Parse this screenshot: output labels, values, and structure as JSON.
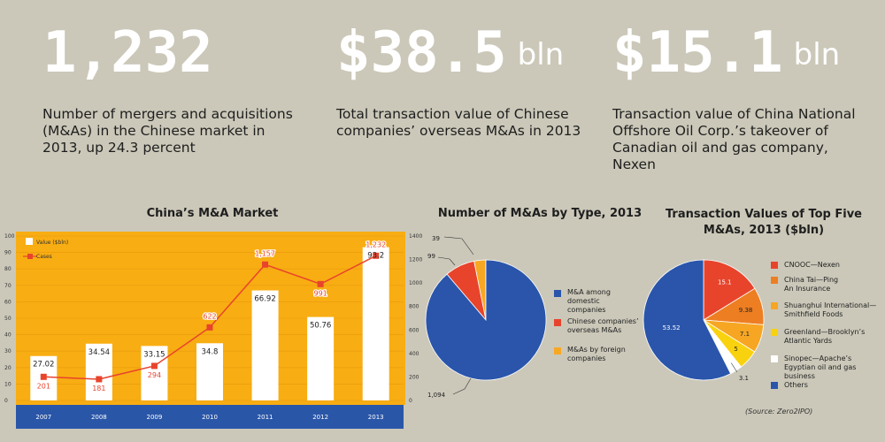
{
  "stats": [
    {
      "value": "1,232",
      "unit": "",
      "desc": "Number of mergers and acquisitions (M&As) in the Chinese market in 2013, up 24.3 percent"
    },
    {
      "value": "$38.5",
      "unit": "bln",
      "desc": "Total transaction value of Chinese companies’ overseas M&As in 2013"
    },
    {
      "value": "$15.1",
      "unit": "bln",
      "desc": "Transaction value of China National Offshore Oil Corp.’s takeover of Canadian oil and gas company, Nexen"
    }
  ],
  "chart_data": [
    {
      "type": "bar",
      "title": "China’s M&A Market",
      "categories": [
        "2007",
        "2008",
        "2009",
        "2010",
        "2011",
        "2012",
        "2013"
      ],
      "series": [
        {
          "name": "Value ($bln)",
          "type": "bar",
          "axis": "left",
          "values": [
            27.02,
            34.54,
            33.15,
            34.8,
            66.92,
            50.76,
            93.2
          ],
          "labels": [
            "27.02",
            "34.54",
            "33.15",
            "34.8",
            "66.92",
            "50.76",
            "93.2"
          ]
        },
        {
          "name": "Cases",
          "type": "line",
          "axis": "right",
          "values": [
            201,
            181,
            294,
            622,
            1157,
            991,
            1232
          ],
          "labels": [
            "201",
            "181",
            "294",
            "622",
            "1,157",
            "991",
            "1,232"
          ]
        }
      ],
      "yleft": {
        "range": [
          0,
          100
        ],
        "ticks": [
          "100",
          "90",
          "80",
          "70",
          "60",
          "50",
          "40",
          "30",
          "20",
          "10",
          "0"
        ]
      },
      "yright": {
        "range": [
          0,
          1400
        ],
        "ticks": [
          "1400",
          "1200",
          "1000",
          "800",
          "600",
          "400",
          "200",
          "0"
        ]
      },
      "colors": {
        "bar": "#ffffff",
        "line": "#e8442c",
        "background": "#f8ad12",
        "axis_band": "#2a56a8"
      }
    },
    {
      "type": "pie",
      "title": "Number of M&As by Type, 2013",
      "slices": [
        {
          "label": "M&A among domestic companies",
          "value": 1094,
          "display": "1,094",
          "color": "#2a55ab"
        },
        {
          "label": "Chinese companies’ overseas M&As",
          "value": 99,
          "display": "99",
          "color": "#e8442c"
        },
        {
          "label": "M&As by foreign companies",
          "value": 39,
          "display": "39",
          "color": "#f7a823"
        }
      ]
    },
    {
      "type": "pie",
      "title": "Transaction Values of Top Five M&As, 2013 ($bln)",
      "slices": [
        {
          "label": "CNOOC—Nexen",
          "value": 15.1,
          "display": "15.1",
          "color": "#e8442c"
        },
        {
          "label": "China Tai—Ping An Insurance",
          "value": 9.38,
          "display": "9.38",
          "color": "#ee7e22"
        },
        {
          "label": "Shuanghui International—Smithfield Foods",
          "value": 7.1,
          "display": "7.1",
          "color": "#f6a623"
        },
        {
          "label": "Greenland—Brooklyn’s Atlantic Yards",
          "value": 5,
          "display": "5",
          "color": "#f9d20f"
        },
        {
          "label": "Sinopec—Apache’s Egyptian oil and gas business",
          "value": 3.1,
          "display": "3.1",
          "color": "#ffffff"
        },
        {
          "label": "Others",
          "value": 53.52,
          "display": "53.52",
          "color": "#2a55ab"
        }
      ],
      "source": "(Source: Zero2IPO)"
    }
  ]
}
